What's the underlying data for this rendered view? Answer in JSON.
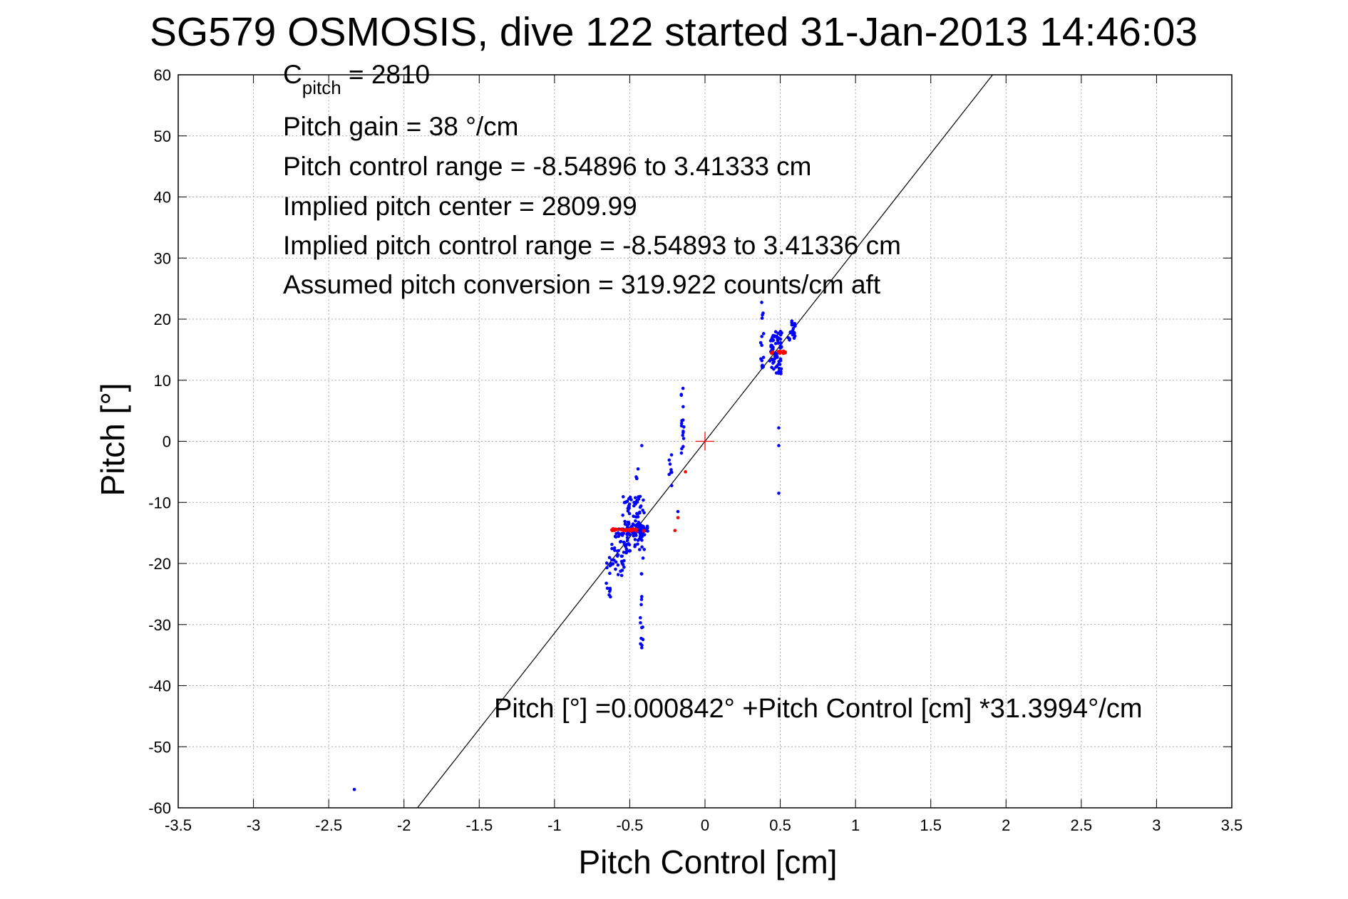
{
  "chart_data": {
    "type": "scatter",
    "title": "SG579 OSMOSIS, dive 122 started 31-Jan-2013 14:46:03",
    "xlabel": "Pitch Control [cm]",
    "ylabel": "Pitch [°]",
    "xlim": [
      -3.5,
      3.5
    ],
    "ylim": [
      -60,
      60
    ],
    "xticks": [
      -3.5,
      -3,
      -2.5,
      -2,
      -1.5,
      -1,
      -0.5,
      0,
      0.5,
      1,
      1.5,
      2,
      2.5,
      3,
      3.5
    ],
    "yticks": [
      -60,
      -50,
      -40,
      -30,
      -20,
      -10,
      0,
      10,
      20,
      30,
      40,
      50,
      60
    ],
    "xtick_labels": [
      "-3.5",
      "-3",
      "-2.5",
      "-2",
      "-1.5",
      "-1",
      "-0.5",
      "0",
      "0.5",
      "1",
      "1.5",
      "2",
      "2.5",
      "3",
      "3.5"
    ],
    "ytick_labels": [
      "-60",
      "-50",
      "-40",
      "-30",
      "-20",
      "-10",
      "0",
      "10",
      "20",
      "30",
      "40",
      "50",
      "60"
    ],
    "grid": true,
    "colors": {
      "data": "#0000ff",
      "stable": "#ff0000",
      "fit": "#000000",
      "grid": "#aaaaaa"
    },
    "fit_line": {
      "intercept": 0.000842,
      "slope": 31.3994
    },
    "center_marker": {
      "x": 0,
      "y": 0
    },
    "annotations": {
      "c_pitch_main": "C",
      "c_pitch_sub": "pitch",
      "c_pitch_value": " = 2810",
      "pitch_gain": "Pitch gain = 38 °/cm",
      "control_range": "Pitch control range = -8.54896 to 3.41333 cm",
      "implied_center": "Implied pitch center = 2809.99",
      "implied_range": "Implied pitch control range = -8.54893 to 3.41336 cm",
      "conversion": "Assumed pitch conversion = 319.922 counts/cm aft",
      "equation": "Pitch [°] =0.000842° +Pitch Control [cm] *31.3994°/cm"
    },
    "series": [
      {
        "color": "blue",
        "clusters": [
          {
            "x": [
              -0.66,
              -0.62
            ],
            "y": [
              -27,
              -19
            ],
            "n": 14
          },
          {
            "x": [
              -0.62,
              -0.52
            ],
            "y": [
              -22,
              -14
            ],
            "n": 45
          },
          {
            "x": [
              -0.55,
              -0.4
            ],
            "y": [
              -18,
              -9
            ],
            "n": 90
          },
          {
            "x": [
              -0.52,
              -0.38
            ],
            "y": [
              -15.5,
              -13.5
            ],
            "n": 45
          },
          {
            "x": [
              -0.43,
              -0.41
            ],
            "y": [
              -34,
              -15
            ],
            "n": 16
          },
          {
            "x": [
              -0.46,
              -0.44
            ],
            "y": [
              -8,
              -4
            ],
            "n": 4
          },
          {
            "x": [
              -0.25,
              -0.22
            ],
            "y": [
              -8,
              -2
            ],
            "n": 8
          },
          {
            "x": [
              -0.16,
              -0.14
            ],
            "y": [
              -2,
              9.5
            ],
            "n": 16
          },
          {
            "x": [
              0.37,
              0.39
            ],
            "y": [
              12,
              23
            ],
            "n": 16
          },
          {
            "x": [
              0.43,
              0.51
            ],
            "y": [
              11,
              18
            ],
            "n": 70
          },
          {
            "x": [
              0.55,
              0.6
            ],
            "y": [
              16.5,
              19.8
            ],
            "n": 24
          }
        ],
        "points": [
          {
            "x": -2.33,
            "y": -57
          },
          {
            "x": -0.42,
            "y": -0.7
          },
          {
            "x": -0.18,
            "y": -11.5
          },
          {
            "x": -0.42,
            "y": -30.5
          },
          {
            "x": -0.42,
            "y": -33.8
          },
          {
            "x": 0.49,
            "y": 2.2
          },
          {
            "x": 0.49,
            "y": -0.7
          },
          {
            "x": 0.49,
            "y": -8.5
          }
        ]
      },
      {
        "color": "red",
        "clusters": [
          {
            "x": [
              -0.62,
              -0.38
            ],
            "y": [
              -14.7,
              -14.3
            ],
            "n": 32
          },
          {
            "x": [
              0.44,
              0.55
            ],
            "y": [
              14.4,
              14.8
            ],
            "n": 16
          }
        ],
        "points": [
          {
            "x": -0.2,
            "y": -14.6
          },
          {
            "x": -0.13,
            "y": -5
          },
          {
            "x": -0.18,
            "y": -12.5
          }
        ]
      }
    ]
  }
}
